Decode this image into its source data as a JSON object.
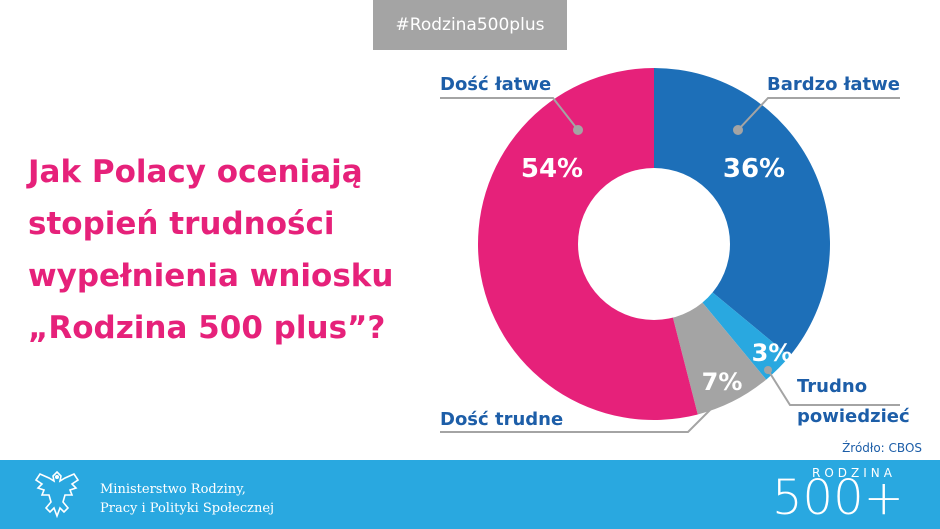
{
  "hashtag": "#Rodzina500plus",
  "question_lines": [
    "Jak Polacy oceniają",
    "stopień trudności",
    "wypełnienia wniosku",
    "„Rodzina 500 plus”?"
  ],
  "colors": {
    "pink": "#e6217a",
    "dark_blue": "#1d6fb8",
    "light_blue": "#29a8e0",
    "gray": "#a4a4a4",
    "label_blue": "#1d5ea8"
  },
  "chart_data": {
    "type": "pie",
    "donut": true,
    "slices": [
      {
        "label": "Bardzo łatwe",
        "value": 36,
        "value_label": "36%",
        "color": "#1d6fb8"
      },
      {
        "label": "Trudno powiedzieć",
        "value": 3,
        "value_label": "3%",
        "color": "#29a8e0"
      },
      {
        "label": "Dość trudne",
        "value": 7,
        "value_label": "7%",
        "color": "#a4a4a4"
      },
      {
        "label": "Dość łatwe",
        "value": 54,
        "value_label": "54%",
        "color": "#e6217a"
      }
    ]
  },
  "labels": {
    "bardzo": "Bardzo łatwe",
    "dosc_latwe": "Dość łatwe",
    "trudno_1": "Trudno",
    "trudno_2": "powiedzieć",
    "dosc_trudne": "Dość trudne"
  },
  "source": "Źródło: CBOS",
  "ministry": [
    "Ministerstwo Rodziny,",
    "Pracy i Polityki Społecznej"
  ],
  "brand": {
    "word": "RODZINA",
    "number": "500+"
  }
}
